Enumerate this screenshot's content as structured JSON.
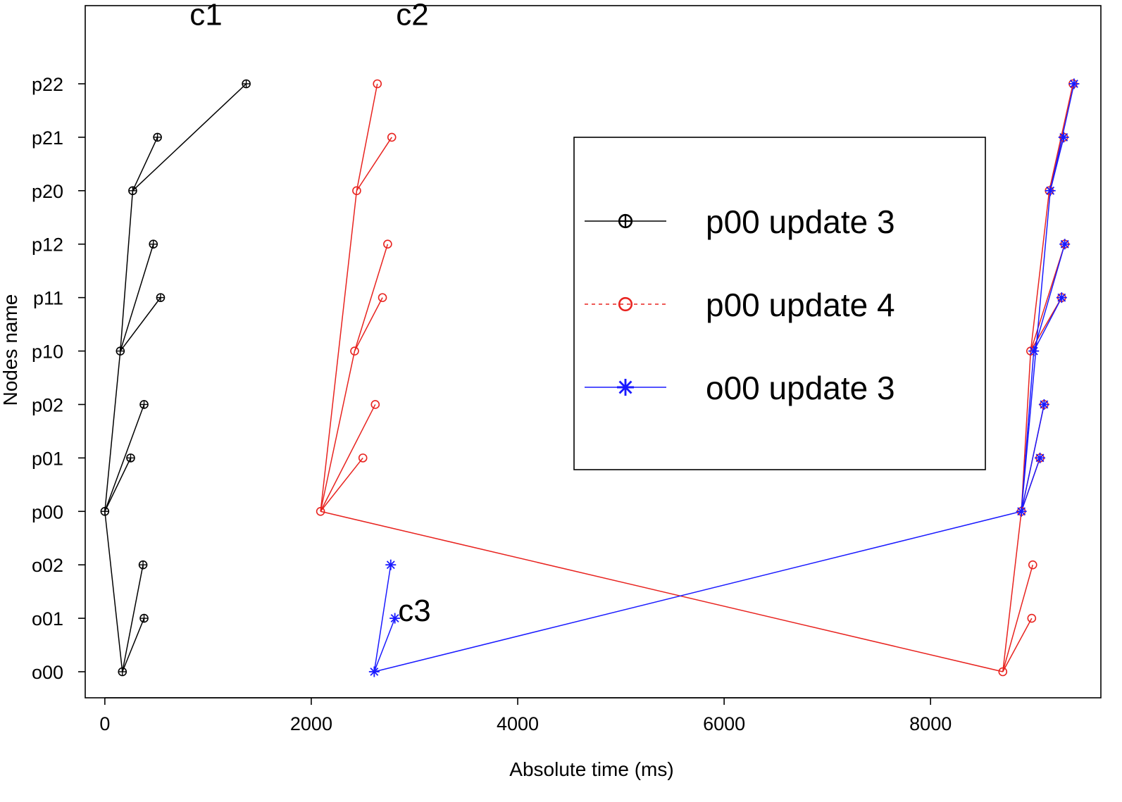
{
  "chart_data": {
    "type": "line",
    "xlabel": "Absolute time (ms)",
    "ylabel": "Nodes name",
    "xlim": [
      -190,
      9650
    ],
    "x_ticks": [
      0,
      2000,
      4000,
      6000,
      8000
    ],
    "categories": [
      "o00",
      "o01",
      "o02",
      "p00",
      "p01",
      "p02",
      "p10",
      "p11",
      "p12",
      "p20",
      "p21",
      "p22"
    ],
    "grid": false,
    "legend_position": "upper-right-inside",
    "annotations": [
      {
        "text": "c1",
        "x": 980,
        "y": 12.1
      },
      {
        "text": "c2",
        "x": 2980,
        "y": 12.1
      },
      {
        "text": "c3",
        "x": 3000,
        "y": 0.95
      }
    ],
    "series": [
      {
        "name": "p00 update 3",
        "color": "#000000",
        "line_style": "solid",
        "marker": "circle-plus",
        "edges": [
          {
            "from": [
              "p00",
              0
            ],
            "to": [
              "o00",
              170
            ]
          },
          {
            "from": [
              "o00",
              170
            ],
            "to": [
              "o01",
              380
            ]
          },
          {
            "from": [
              "o00",
              170
            ],
            "to": [
              "o02",
              370
            ]
          },
          {
            "from": [
              "p00",
              0
            ],
            "to": [
              "p01",
              250
            ]
          },
          {
            "from": [
              "p00",
              0
            ],
            "to": [
              "p02",
              380
            ]
          },
          {
            "from": [
              "p00",
              0
            ],
            "to": [
              "p10",
              150
            ]
          },
          {
            "from": [
              "p10",
              150
            ],
            "to": [
              "p11",
              540
            ]
          },
          {
            "from": [
              "p10",
              150
            ],
            "to": [
              "p12",
              470
            ]
          },
          {
            "from": [
              "p10",
              150
            ],
            "to": [
              "p20",
              270
            ]
          },
          {
            "from": [
              "p20",
              270
            ],
            "to": [
              "p21",
              510
            ]
          },
          {
            "from": [
              "p20",
              270
            ],
            "to": [
              "p22",
              1370
            ]
          }
        ]
      },
      {
        "name": "p00 update 4",
        "color": "#e8231f",
        "line_style": "dashed",
        "marker": "circle",
        "edges": [
          {
            "from": [
              "p00",
              2090
            ],
            "to": [
              "p01",
              2500
            ]
          },
          {
            "from": [
              "p00",
              2090
            ],
            "to": [
              "p02",
              2620
            ]
          },
          {
            "from": [
              "p00",
              2090
            ],
            "to": [
              "p10",
              2420
            ]
          },
          {
            "from": [
              "p10",
              2420
            ],
            "to": [
              "p11",
              2690
            ]
          },
          {
            "from": [
              "p10",
              2420
            ],
            "to": [
              "p12",
              2740
            ]
          },
          {
            "from": [
              "p00",
              2090
            ],
            "to": [
              "p20",
              2440
            ]
          },
          {
            "from": [
              "p20",
              2440
            ],
            "to": [
              "p21",
              2780
            ]
          },
          {
            "from": [
              "p20",
              2440
            ],
            "to": [
              "p22",
              2640
            ]
          },
          {
            "from": [
              "p00",
              2090
            ],
            "to": [
              "o00",
              8700
            ]
          },
          {
            "from": [
              "o00",
              8700
            ],
            "to": [
              "o01",
              8980
            ]
          },
          {
            "from": [
              "o00",
              8700
            ],
            "to": [
              "o02",
              8990
            ]
          },
          {
            "from": [
              "o00",
              8700
            ],
            "to": [
              "p00",
              8880
            ]
          },
          {
            "from": [
              "p00",
              8880
            ],
            "to": [
              "p01",
              9060
            ]
          },
          {
            "from": [
              "p00",
              8880
            ],
            "to": [
              "p02",
              9100
            ]
          },
          {
            "from": [
              "p00",
              8880
            ],
            "to": [
              "p10",
              8970
            ]
          },
          {
            "from": [
              "p10",
              8970
            ],
            "to": [
              "p11",
              9270
            ]
          },
          {
            "from": [
              "p10",
              8970
            ],
            "to": [
              "p12",
              9300
            ]
          },
          {
            "from": [
              "p10",
              8970
            ],
            "to": [
              "p20",
              9150
            ]
          },
          {
            "from": [
              "p20",
              9150
            ],
            "to": [
              "p21",
              9290
            ]
          },
          {
            "from": [
              "p20",
              9150
            ],
            "to": [
              "p22",
              9380
            ]
          }
        ]
      },
      {
        "name": "o00 update 3",
        "color": "#1a1aff",
        "line_style": "solid",
        "marker": "asterisk",
        "edges": [
          {
            "from": [
              "o00",
              2610
            ],
            "to": [
              "o01",
              2810
            ]
          },
          {
            "from": [
              "o00",
              2610
            ],
            "to": [
              "o02",
              2770
            ]
          },
          {
            "from": [
              "o00",
              2610
            ],
            "to": [
              "p00",
              8880
            ]
          },
          {
            "from": [
              "p00",
              8880
            ],
            "to": [
              "p01",
              9060
            ]
          },
          {
            "from": [
              "p00",
              8880
            ],
            "to": [
              "p02",
              9100
            ]
          },
          {
            "from": [
              "p00",
              8880
            ],
            "to": [
              "p10",
              9000
            ]
          },
          {
            "from": [
              "p10",
              9000
            ],
            "to": [
              "p11",
              9270
            ]
          },
          {
            "from": [
              "p10",
              9000
            ],
            "to": [
              "p12",
              9300
            ]
          },
          {
            "from": [
              "p00",
              8880
            ],
            "to": [
              "p20",
              9160
            ]
          },
          {
            "from": [
              "p20",
              9160
            ],
            "to": [
              "p21",
              9290
            ]
          },
          {
            "from": [
              "p20",
              9160
            ],
            "to": [
              "p22",
              9390
            ]
          }
        ]
      }
    ]
  }
}
